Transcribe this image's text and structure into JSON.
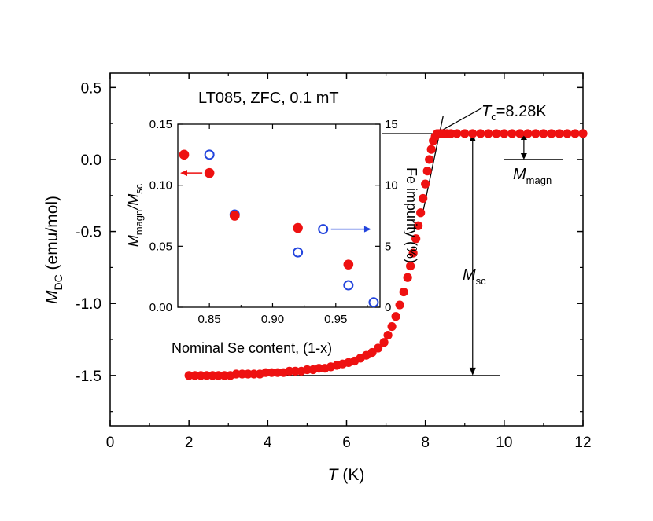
{
  "chart_data": [
    {
      "type": "scatter",
      "title": "LT085, ZFC, 0.1 mT",
      "xlabel": "T (K)",
      "xlabel_main": "T",
      "xlabel_unit": " (K)",
      "ylabel_main": "M",
      "ylabel_sub": "DC",
      "ylabel_unit": " (emu/mol)",
      "xlim": [
        0,
        12
      ],
      "ylim": [
        -1.85,
        0.6
      ],
      "xticks": [
        "0",
        "2",
        "4",
        "6",
        "8",
        "10",
        "12"
      ],
      "yticks": [
        "0.5",
        "0.0",
        "-0.5",
        "-1.0",
        "-1.5"
      ],
      "grid": false,
      "marker_color": "#ee1111",
      "series": [
        {
          "x": [
            2.0,
            2.15,
            2.3,
            2.45,
            2.6,
            2.75,
            2.9,
            3.05,
            3.2,
            3.35,
            3.5,
            3.65,
            3.8,
            3.95,
            4.1,
            4.25,
            4.4,
            4.55,
            4.7,
            4.85,
            5.0,
            5.15,
            5.3,
            5.45,
            5.6,
            5.75,
            5.9,
            6.05,
            6.2,
            6.35,
            6.5,
            6.65,
            6.8,
            6.95,
            7.05,
            7.15,
            7.25,
            7.35,
            7.45,
            7.55,
            7.62,
            7.69,
            7.76,
            7.82,
            7.88,
            7.94,
            8.0,
            8.05,
            8.1,
            8.15,
            8.2,
            8.25,
            8.3,
            8.35,
            8.4,
            8.45,
            8.55,
            8.65,
            8.8,
            9.0,
            9.2,
            9.4,
            9.6,
            9.8,
            10.0,
            10.2,
            10.4,
            10.6,
            10.8,
            11.0,
            11.2,
            11.4,
            11.6,
            11.8,
            12.0
          ],
          "y": [
            -1.5,
            -1.5,
            -1.5,
            -1.5,
            -1.5,
            -1.5,
            -1.5,
            -1.5,
            -1.49,
            -1.49,
            -1.49,
            -1.49,
            -1.49,
            -1.48,
            -1.48,
            -1.48,
            -1.48,
            -1.47,
            -1.47,
            -1.47,
            -1.46,
            -1.46,
            -1.45,
            -1.45,
            -1.44,
            -1.43,
            -1.42,
            -1.41,
            -1.4,
            -1.38,
            -1.36,
            -1.34,
            -1.31,
            -1.27,
            -1.22,
            -1.16,
            -1.09,
            -1.01,
            -0.92,
            -0.82,
            -0.74,
            -0.65,
            -0.55,
            -0.46,
            -0.37,
            -0.27,
            -0.17,
            -0.08,
            0.0,
            0.07,
            0.13,
            0.16,
            0.18,
            0.18,
            0.18,
            0.18,
            0.18,
            0.18,
            0.18,
            0.18,
            0.18,
            0.18,
            0.18,
            0.18,
            0.18,
            0.18,
            0.18,
            0.18,
            0.18,
            0.18,
            0.18,
            0.18,
            0.18,
            0.18,
            0.18
          ]
        }
      ],
      "annotations": {
        "tc_main": "T",
        "tc_sub": "c",
        "tc_value": "=8.28K",
        "mmagn_main": "M",
        "mmagn_sub": "magn",
        "msc_main": "M",
        "msc_sub": "sc"
      }
    },
    {
      "type": "scatter",
      "inset": true,
      "xlabel": "Nominal Se content, (1-x)",
      "ylabel_left": "M_magn/M_sc",
      "ylabel_left_parts": [
        "M",
        "magn",
        "/M",
        "sc"
      ],
      "ylabel_right": "Fe impurity (%)",
      "xlim": [
        0.825,
        0.985
      ],
      "ylim_left": [
        0,
        0.15
      ],
      "ylim_right": [
        0,
        15
      ],
      "xticks": [
        "0.85",
        "0.90",
        "0.95"
      ],
      "yticks_left": [
        "0.00",
        "0.05",
        "0.10",
        "0.15"
      ],
      "yticks_right": [
        "0",
        "5",
        "10",
        "15"
      ],
      "series": [
        {
          "name": "M_magn/M_sc",
          "axis": "left",
          "marker": "filled-circle",
          "color": "#ee1111",
          "x": [
            0.83,
            0.85,
            0.87,
            0.92,
            0.96
          ],
          "y": [
            0.125,
            0.11,
            0.075,
            0.065,
            0.035
          ]
        },
        {
          "name": "Fe impurity (%)",
          "axis": "right",
          "marker": "open-circle",
          "color": "#2244dd",
          "x": [
            0.85,
            0.87,
            0.92,
            0.94,
            0.96,
            0.98
          ],
          "y": [
            12.5,
            7.6,
            4.5,
            6.4,
            1.8,
            0.4
          ]
        }
      ]
    }
  ]
}
